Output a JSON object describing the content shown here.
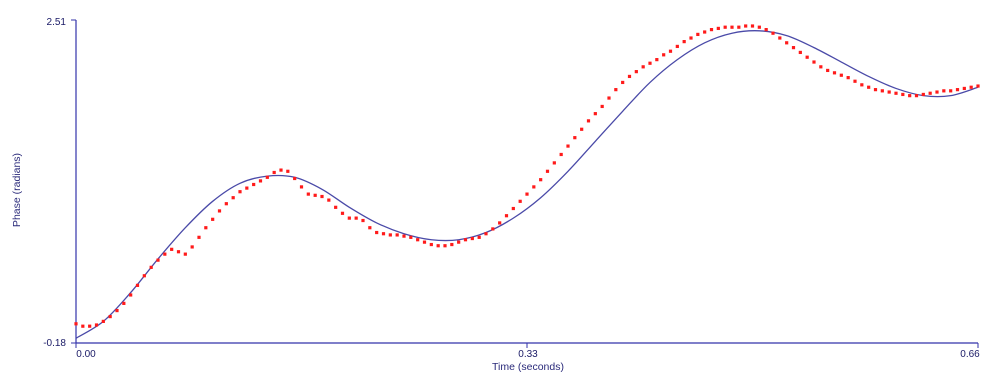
{
  "chart_data": {
    "type": "scatter",
    "title": "",
    "xlabel": "Time (seconds)",
    "ylabel": "Phase (radians)",
    "xlim": [
      0.0,
      0.66
    ],
    "ylim": [
      -0.18,
      2.51
    ],
    "x_ticks": [
      "0.00",
      "0.33",
      "0.66"
    ],
    "y_ticks": [
      "-0.18",
      "2.51"
    ],
    "grid": false,
    "colors": {
      "axis": "#3333aa",
      "fit_line": "#4a4aa8",
      "data_points": "#ff1a1a"
    },
    "series": [
      {
        "kind": "line",
        "x": [
          0.0,
          0.02,
          0.04,
          0.06,
          0.08,
          0.1,
          0.12,
          0.14,
          0.16,
          0.18,
          0.2,
          0.22,
          0.24,
          0.26,
          0.28,
          0.3,
          0.32,
          0.34,
          0.36,
          0.38,
          0.4,
          0.42,
          0.44,
          0.46,
          0.48,
          0.5,
          0.52,
          0.54,
          0.56,
          0.58,
          0.6,
          0.62,
          0.64,
          0.66
        ],
        "y": [
          -0.14,
          0.0,
          0.24,
          0.52,
          0.78,
          1.0,
          1.15,
          1.21,
          1.2,
          1.1,
          0.95,
          0.82,
          0.73,
          0.68,
          0.68,
          0.74,
          0.86,
          1.03,
          1.25,
          1.5,
          1.75,
          1.99,
          2.18,
          2.32,
          2.4,
          2.42,
          2.38,
          2.28,
          2.16,
          2.04,
          1.94,
          1.88,
          1.88,
          1.95
        ]
      },
      {
        "kind": "points",
        "x": [
          0.0,
          0.005,
          0.01,
          0.015,
          0.02,
          0.025,
          0.03,
          0.035,
          0.04,
          0.045,
          0.05,
          0.055,
          0.06,
          0.065,
          0.07,
          0.075,
          0.08,
          0.085,
          0.09,
          0.095,
          0.1,
          0.105,
          0.11,
          0.115,
          0.12,
          0.125,
          0.13,
          0.135,
          0.14,
          0.145,
          0.15,
          0.155,
          0.16,
          0.165,
          0.17,
          0.175,
          0.18,
          0.185,
          0.19,
          0.195,
          0.2,
          0.205,
          0.21,
          0.215,
          0.22,
          0.225,
          0.23,
          0.235,
          0.24,
          0.245,
          0.25,
          0.255,
          0.26,
          0.265,
          0.27,
          0.275,
          0.28,
          0.285,
          0.29,
          0.295,
          0.3,
          0.305,
          0.31,
          0.315,
          0.32,
          0.325,
          0.33,
          0.335,
          0.34,
          0.345,
          0.35,
          0.355,
          0.36,
          0.365,
          0.37,
          0.375,
          0.38,
          0.385,
          0.39,
          0.395,
          0.4,
          0.405,
          0.41,
          0.415,
          0.42,
          0.425,
          0.43,
          0.435,
          0.44,
          0.445,
          0.45,
          0.455,
          0.46,
          0.465,
          0.47,
          0.475,
          0.48,
          0.485,
          0.49,
          0.495,
          0.5,
          0.505,
          0.51,
          0.515,
          0.52,
          0.525,
          0.53,
          0.535,
          0.54,
          0.545,
          0.55,
          0.555,
          0.56,
          0.565,
          0.57,
          0.575,
          0.58,
          0.585,
          0.59,
          0.595,
          0.6,
          0.605,
          0.61,
          0.615,
          0.62,
          0.625,
          0.63,
          0.635,
          0.64,
          0.645,
          0.65,
          0.655,
          0.66
        ],
        "y": [
          -0.02,
          -0.04,
          -0.04,
          -0.03,
          0.0,
          0.04,
          0.09,
          0.15,
          0.22,
          0.3,
          0.38,
          0.45,
          0.51,
          0.56,
          0.6,
          0.58,
          0.56,
          0.62,
          0.7,
          0.78,
          0.85,
          0.92,
          0.98,
          1.03,
          1.08,
          1.11,
          1.14,
          1.17,
          1.2,
          1.24,
          1.26,
          1.25,
          1.19,
          1.12,
          1.06,
          1.05,
          1.04,
          1.01,
          0.95,
          0.9,
          0.86,
          0.86,
          0.84,
          0.78,
          0.74,
          0.73,
          0.72,
          0.72,
          0.71,
          0.7,
          0.68,
          0.66,
          0.64,
          0.63,
          0.63,
          0.64,
          0.66,
          0.68,
          0.69,
          0.7,
          0.73,
          0.77,
          0.82,
          0.88,
          0.94,
          1.0,
          1.06,
          1.12,
          1.18,
          1.25,
          1.32,
          1.39,
          1.46,
          1.53,
          1.6,
          1.67,
          1.73,
          1.79,
          1.86,
          1.93,
          1.99,
          2.04,
          2.08,
          2.12,
          2.15,
          2.18,
          2.22,
          2.25,
          2.29,
          2.33,
          2.36,
          2.39,
          2.41,
          2.43,
          2.44,
          2.45,
          2.45,
          2.45,
          2.46,
          2.46,
          2.45,
          2.43,
          2.4,
          2.36,
          2.32,
          2.28,
          2.24,
          2.2,
          2.16,
          2.12,
          2.09,
          2.07,
          2.05,
          2.03,
          2.0,
          1.97,
          1.95,
          1.93,
          1.92,
          1.91,
          1.9,
          1.89,
          1.88,
          1.88,
          1.89,
          1.9,
          1.91,
          1.92,
          1.92,
          1.93,
          1.94,
          1.95,
          1.96
        ]
      }
    ]
  }
}
